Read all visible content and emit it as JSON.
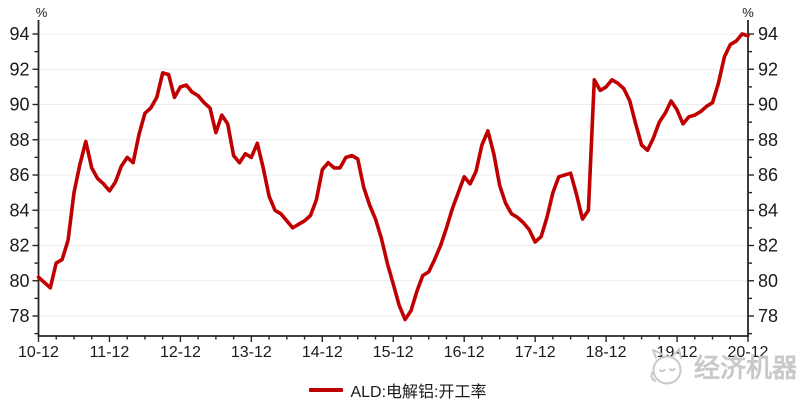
{
  "chart_data": {
    "type": "line",
    "title": "",
    "y_unit_label": "%",
    "y_axis_sides": "both",
    "grid": "horizontal-light",
    "legend_position": "bottom-center",
    "legend": "ALD:电解铝:开工率",
    "x_frequency": "monthly",
    "x_tick_labels": [
      "10-12",
      "11-12",
      "12-12",
      "13-12",
      "14-12",
      "15-12",
      "16-12",
      "17-12",
      "18-12",
      "19-12",
      "20-12"
    ],
    "y_ticks": [
      78,
      80,
      82,
      84,
      86,
      88,
      90,
      92,
      94
    ],
    "ylim": [
      78,
      94
    ],
    "series": [
      {
        "name": "ALD:电解铝:开工率",
        "color": "#C00000",
        "values": [
          80.2,
          79.9,
          79.6,
          81.0,
          81.2,
          82.3,
          85.0,
          86.6,
          87.9,
          86.4,
          85.8,
          85.5,
          85.1,
          85.6,
          86.5,
          87.0,
          86.7,
          88.3,
          89.5,
          89.8,
          90.4,
          91.8,
          91.7,
          90.4,
          91.0,
          91.1,
          90.7,
          90.5,
          90.1,
          89.8,
          88.4,
          89.4,
          88.9,
          87.1,
          86.7,
          87.2,
          87.0,
          87.8,
          86.4,
          84.8,
          84.0,
          83.8,
          83.4,
          83.0,
          83.2,
          83.4,
          83.7,
          84.6,
          86.3,
          86.7,
          86.4,
          86.4,
          87.0,
          87.1,
          86.9,
          85.3,
          84.3,
          83.5,
          82.4,
          81.0,
          79.8,
          78.6,
          77.8,
          78.3,
          79.4,
          80.3,
          80.5,
          81.2,
          82.0,
          83.0,
          84.1,
          85.0,
          85.9,
          85.5,
          86.2,
          87.7,
          88.5,
          87.2,
          85.4,
          84.4,
          83.8,
          83.6,
          83.3,
          82.9,
          82.2,
          82.5,
          83.6,
          85.0,
          85.9,
          86.0,
          86.1,
          84.9,
          83.5,
          84.0,
          91.4,
          90.8,
          91.0,
          91.4,
          91.2,
          90.9,
          90.2,
          88.9,
          87.7,
          87.4,
          88.1,
          89.0,
          89.5,
          90.2,
          89.7,
          88.9,
          89.3,
          89.4,
          89.6,
          89.9,
          90.1,
          91.2,
          92.7,
          93.4,
          93.6,
          94.0,
          93.9
        ]
      }
    ]
  },
  "watermark": {
    "text": "经济机器"
  }
}
